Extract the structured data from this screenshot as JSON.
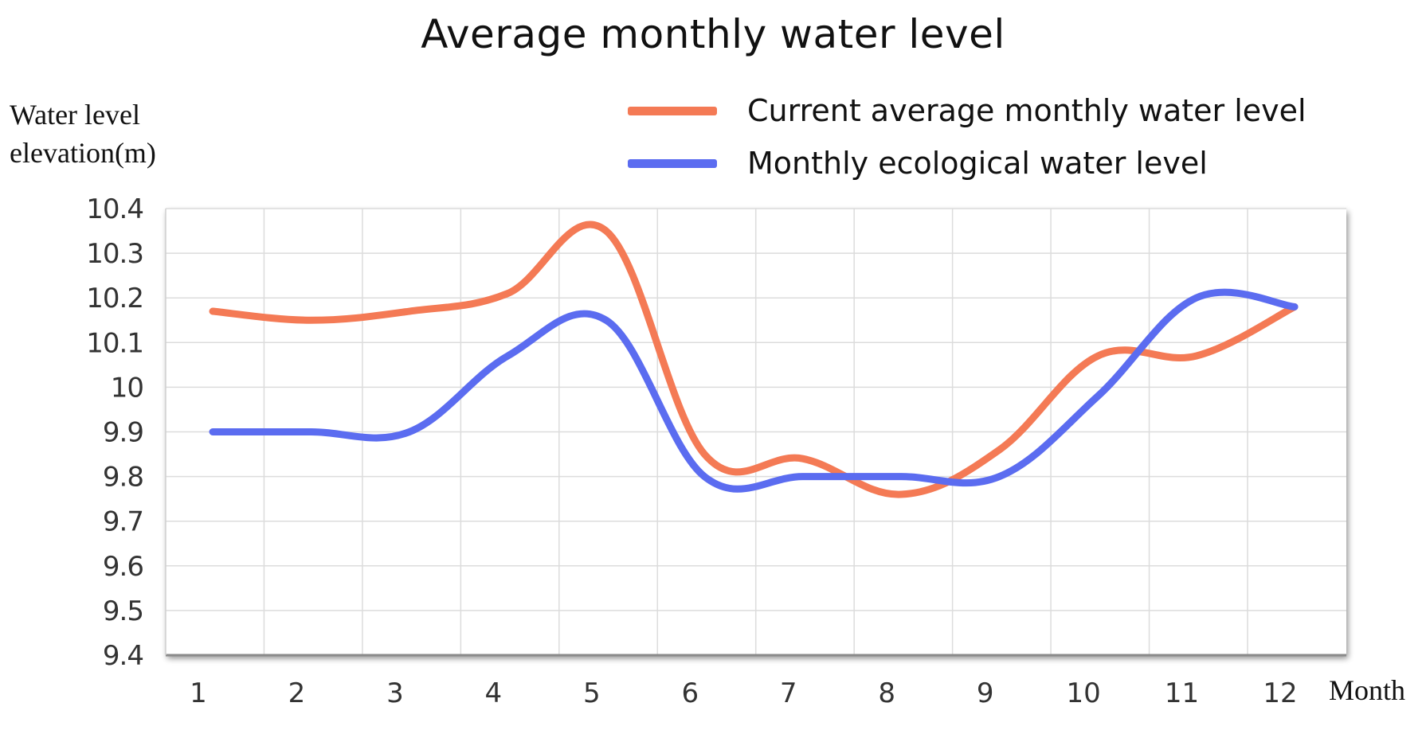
{
  "chart_data": {
    "type": "line",
    "title": "Average monthly water level",
    "ylabel_line1": "Water level",
    "ylabel_line2": "elevation(m)",
    "xlabel": "Month",
    "categories": [
      "1",
      "2",
      "3",
      "4",
      "5",
      "6",
      "7",
      "8",
      "9",
      "10",
      "11",
      "12"
    ],
    "x": [
      1,
      2,
      3,
      4,
      5,
      6,
      7,
      8,
      9,
      10,
      11,
      12
    ],
    "ylim": [
      9.4,
      10.4
    ],
    "yticks": [
      9.4,
      9.5,
      9.6,
      9.7,
      9.8,
      9.9,
      10,
      10.1,
      10.2,
      10.3,
      10.4
    ],
    "ytick_labels": [
      "9.4",
      "9.5",
      "9.6",
      "9.7",
      "9.8",
      "9.9",
      "10",
      "10.1",
      "10.2",
      "10.3",
      "10.4"
    ],
    "grid": true,
    "legend_position": "top-right",
    "series": [
      {
        "name": "Current average monthly water level",
        "color": "#f47a55",
        "values": [
          10.17,
          10.15,
          10.17,
          10.21,
          10.35,
          9.85,
          9.84,
          9.76,
          9.86,
          10.07,
          10.07,
          10.18
        ]
      },
      {
        "name": "Monthly ecological water level",
        "color": "#5b6cf0",
        "values": [
          9.9,
          9.9,
          9.9,
          10.07,
          10.15,
          9.8,
          9.8,
          9.8,
          9.8,
          9.98,
          10.2,
          10.18
        ]
      }
    ]
  }
}
